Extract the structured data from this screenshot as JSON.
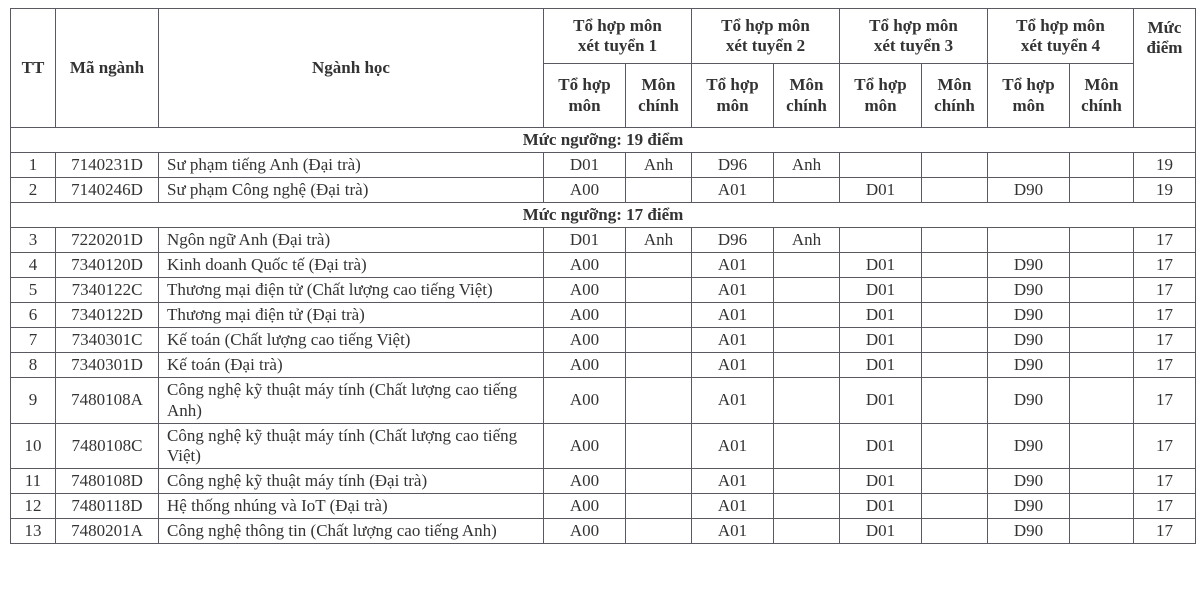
{
  "colors": {
    "border": "#595962",
    "text": "#333333",
    "background": "#ffffff"
  },
  "table": {
    "header": {
      "tt": "TT",
      "ma_nganh": "Mã ngành",
      "nganh_hoc": "Ngành học",
      "groups": [
        {
          "label": "Tổ hợp môn\nxét tuyển 1"
        },
        {
          "label": "Tổ hợp môn\nxét tuyển 2"
        },
        {
          "label": "Tổ hợp môn\nxét tuyển 3"
        },
        {
          "label": "Tổ hợp môn\nxét tuyển 4"
        }
      ],
      "sub_to_hop": "Tổ hợp\nmôn",
      "sub_mon_chinh": "Môn\nchính",
      "muc_diem": "Mức\nđiểm"
    },
    "sections": [
      {
        "title": "Mức ngưỡng: 19 điểm",
        "rows": [
          {
            "tt": "1",
            "code": "7140231D",
            "name": "Sư phạm tiếng Anh (Đại trà)",
            "combos": [
              "D01",
              "Anh",
              "D96",
              "Anh",
              "",
              "",
              "",
              ""
            ],
            "score": "19"
          },
          {
            "tt": "2",
            "code": "7140246D",
            "name": "Sư phạm Công nghệ (Đại trà)",
            "combos": [
              "A00",
              "",
              "A01",
              "",
              "D01",
              "",
              "D90",
              ""
            ],
            "score": "19"
          }
        ]
      },
      {
        "title": "Mức ngưỡng: 17 điểm",
        "rows": [
          {
            "tt": "3",
            "code": "7220201D",
            "name": "Ngôn ngữ Anh (Đại trà)",
            "combos": [
              "D01",
              "Anh",
              "D96",
              "Anh",
              "",
              "",
              "",
              ""
            ],
            "score": "17"
          },
          {
            "tt": "4",
            "code": "7340120D",
            "name": "Kinh doanh Quốc tế (Đại trà)",
            "combos": [
              "A00",
              "",
              "A01",
              "",
              "D01",
              "",
              "D90",
              ""
            ],
            "score": "17"
          },
          {
            "tt": "5",
            "code": "7340122C",
            "name": "Thương mại điện tử (Chất lượng cao tiếng Việt)",
            "combos": [
              "A00",
              "",
              "A01",
              "",
              "D01",
              "",
              "D90",
              ""
            ],
            "score": "17"
          },
          {
            "tt": "6",
            "code": "7340122D",
            "name": "Thương mại điện tử (Đại trà)",
            "combos": [
              "A00",
              "",
              "A01",
              "",
              "D01",
              "",
              "D90",
              ""
            ],
            "score": "17"
          },
          {
            "tt": "7",
            "code": "7340301C",
            "name": "Kế toán (Chất lượng cao tiếng Việt)",
            "combos": [
              "A00",
              "",
              "A01",
              "",
              "D01",
              "",
              "D90",
              ""
            ],
            "score": "17"
          },
          {
            "tt": "8",
            "code": "7340301D",
            "name": "Kế toán (Đại trà)",
            "combos": [
              "A00",
              "",
              "A01",
              "",
              "D01",
              "",
              "D90",
              ""
            ],
            "score": "17"
          },
          {
            "tt": "9",
            "code": "7480108A",
            "name": "Công nghệ kỹ thuật máy tính (Chất lượng cao tiếng Anh)",
            "combos": [
              "A00",
              "",
              "A01",
              "",
              "D01",
              "",
              "D90",
              ""
            ],
            "score": "17"
          },
          {
            "tt": "10",
            "code": "7480108C",
            "name": "Công nghệ kỹ thuật máy tính (Chất lượng cao tiếng Việt)",
            "combos": [
              "A00",
              "",
              "A01",
              "",
              "D01",
              "",
              "D90",
              ""
            ],
            "score": "17"
          },
          {
            "tt": "11",
            "code": "7480108D",
            "name": "Công nghệ kỹ thuật máy tính (Đại trà)",
            "combos": [
              "A00",
              "",
              "A01",
              "",
              "D01",
              "",
              "D90",
              ""
            ],
            "score": "17"
          },
          {
            "tt": "12",
            "code": "7480118D",
            "name": "Hệ thống nhúng và IoT (Đại trà)",
            "combos": [
              "A00",
              "",
              "A01",
              "",
              "D01",
              "",
              "D90",
              ""
            ],
            "score": "17"
          },
          {
            "tt": "13",
            "code": "7480201A",
            "name": "Công nghệ thông tin (Chất lượng cao tiếng Anh)",
            "combos": [
              "A00",
              "",
              "A01",
              "",
              "D01",
              "",
              "D90",
              ""
            ],
            "score": "17"
          }
        ]
      }
    ]
  }
}
